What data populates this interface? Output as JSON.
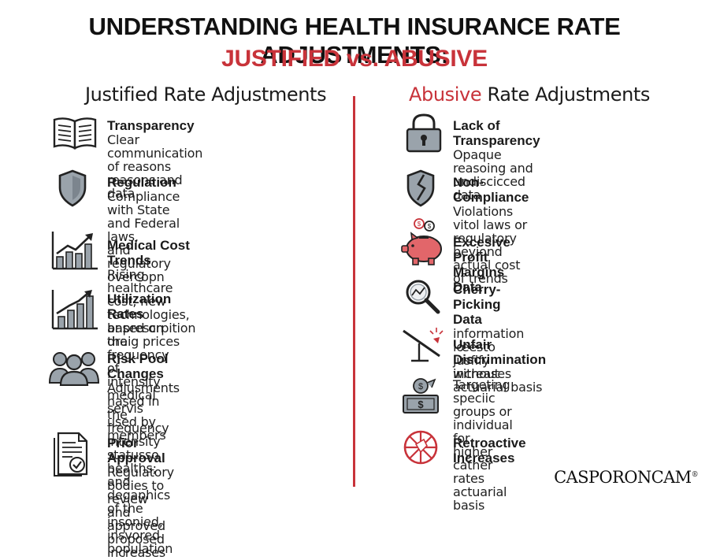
{
  "header": {
    "title_line1": "UNDERSTANDING HEALTH INSURANCE RATE ADJUSTMENTS:",
    "title_justified": "JUSTIFIED",
    "title_vs": " vs. ",
    "title_abusive": "ABUSIVE"
  },
  "colors": {
    "accent": "#c8333a",
    "text": "#1a1a1a",
    "icon_gray": "#9aa3ab",
    "icon_outline": "#2a2a2a",
    "piggy": "#e2666a"
  },
  "left": {
    "heading": "Justified Rate Adjustments",
    "items": [
      {
        "icon": "open-book-icon",
        "title": "Transparency",
        "desc": [
          "Clear communication of reasons",
          "reasons and data"
        ]
      },
      {
        "icon": "shield-icon",
        "title": "Regulation",
        "desc": [
          "Compliance with State and Federal laws,",
          "and regulatory overcopn"
        ]
      },
      {
        "icon": "rising-bar-chart-icon",
        "title": "Medical Cost Trends",
        "desc": [
          "Rising healthcare cost, new technologies,",
          "anprescrpition draig prices"
        ]
      },
      {
        "icon": "trend-bar-chart-icon",
        "title": "Utilization Rates",
        "desc": [
          "based on the freguency of intensity",
          "medical servis used by members"
        ]
      },
      {
        "icon": "people-group-icon",
        "title": "Risk Pool Changes",
        "desc": [
          "Adjusments hased in the frequency",
          "intensity statusso healths; and",
          "degaphics of the insonied, insvored",
          "population"
        ]
      },
      {
        "icon": "approved-document-icon",
        "title": "Prior Approval",
        "desc": [
          "Regulatory bodies to review and",
          "approved proposed increases"
        ]
      }
    ]
  },
  "right": {
    "heading_accent": "Abusive",
    "heading_rest": " Rate Adjustments",
    "items": [
      {
        "icon": "padlock-icon",
        "title": "Lack of Transparency",
        "desc": [
          "Opaque reasoing and undiscicced",
          "data"
        ]
      },
      {
        "icon": "cracked-shield-icon",
        "title": "Non-Compliance",
        "desc": [
          "Violations vitol laws or regulatory",
          "beyiond actual cost of trends"
        ]
      },
      {
        "icon": "piggy-bank-icon",
        "title": "Excesive Profit Margins",
        "title2": "Data",
        "desc": []
      },
      {
        "icon": "magnifier-icon",
        "title": "Cherry-Picking Data",
        "desc": [
          "information iœesto jusfify increases"
        ]
      },
      {
        "icon": "broken-scale-icon",
        "title": "Unfair Discrimination",
        "desc": [
          "without actuarial basis"
        ]
      },
      {
        "icon": "money-target-icon",
        "title": "",
        "desc": [
          "Targeting speciic groups or",
          "individual for higher cather rates",
          "actuarial basis"
        ]
      },
      {
        "icon": "retroactive-wheel-icon",
        "title": "Retroactive Increases",
        "desc": []
      }
    ]
  },
  "footer": {
    "brand": "CASPORONCAM",
    "mark": "®"
  }
}
